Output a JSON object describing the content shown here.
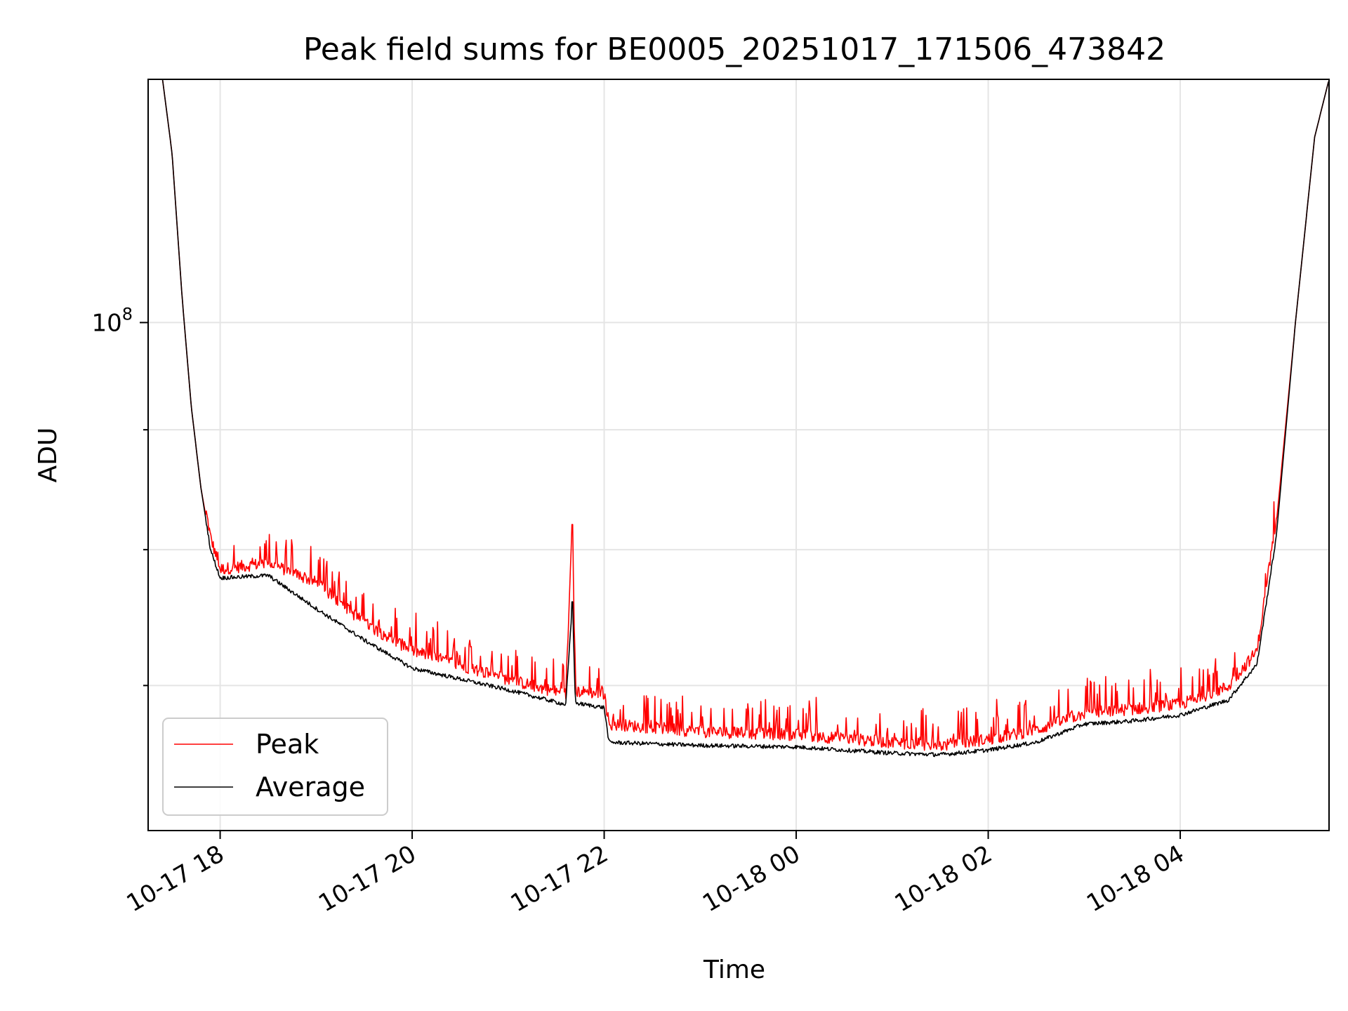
{
  "chart_data": {
    "type": "line",
    "title": "Peak field sums for BE0005_20251017_171506_473842",
    "xlabel": "Time",
    "ylabel": "ADU",
    "yscale": "log",
    "ylim": [
      60700000.0,
      127000000.0
    ],
    "xlim_hours": [
      17.25,
      5.55
    ],
    "xticks": [
      {
        "label": "10-17 18",
        "hour": 18
      },
      {
        "label": "10-17 20",
        "hour": 20
      },
      {
        "label": "10-17 22",
        "hour": 22
      },
      {
        "label": "10-18 00",
        "hour": 24
      },
      {
        "label": "10-18 02",
        "hour": 26
      },
      {
        "label": "10-18 04",
        "hour": 28
      }
    ],
    "yticks": [
      {
        "base": "10",
        "exp": "8",
        "value": 100000000
      }
    ],
    "grid": true,
    "legend_position": "lower left",
    "series": [
      {
        "name": "Peak",
        "color": "#ff0000",
        "spike_at": {
          "hour": 21.67,
          "value": 82000000
        },
        "hours": [
          17.4,
          17.5,
          17.6,
          17.7,
          17.8,
          17.9,
          18.0,
          18.5,
          19.0,
          19.5,
          20.0,
          21.0,
          21.6,
          21.67,
          21.7,
          22.0,
          22.05,
          23.0,
          24.0,
          25.0,
          25.5,
          26.0,
          26.5,
          27.0,
          27.5,
          28.0,
          28.5,
          28.8,
          29.0,
          29.2,
          29.4,
          29.55
        ],
        "values": [
          127000000,
          118000000,
          103000000,
          92000000,
          85000000,
          80500000,
          78000000,
          78500000,
          77000000,
          74000000,
          72000000,
          70000000,
          69000000,
          82000000,
          69200000,
          69000000,
          67000000,
          66500000,
          66300000,
          65800000,
          65600000,
          66000000,
          66600000,
          67700000,
          68000000,
          68300000,
          69500000,
          72000000,
          82000000,
          100000000,
          120000000,
          127000000
        ]
      },
      {
        "name": "Average",
        "color": "#000000",
        "spike_at": {
          "hour": 21.67,
          "value": 76000000
        },
        "hours": [
          17.4,
          17.5,
          17.6,
          17.7,
          17.8,
          17.9,
          18.0,
          18.5,
          19.0,
          19.5,
          20.0,
          21.0,
          21.6,
          21.67,
          21.7,
          22.0,
          22.05,
          23.0,
          24.0,
          25.0,
          25.5,
          26.0,
          26.5,
          27.0,
          27.5,
          28.0,
          28.5,
          28.8,
          29.0,
          29.2,
          29.4,
          29.55
        ],
        "values": [
          127000000,
          118000000,
          103000000,
          92000000,
          85000000,
          80000000,
          77800000,
          78000000,
          75500000,
          73200000,
          71200000,
          69700000,
          68700000,
          76000000,
          68800000,
          68500000,
          66200000,
          66000000,
          65900000,
          65500000,
          65400000,
          65700000,
          66200000,
          67400000,
          67600000,
          68000000,
          69000000,
          71500000,
          81000000,
          100000000,
          120000000,
          127000000
        ]
      }
    ]
  }
}
